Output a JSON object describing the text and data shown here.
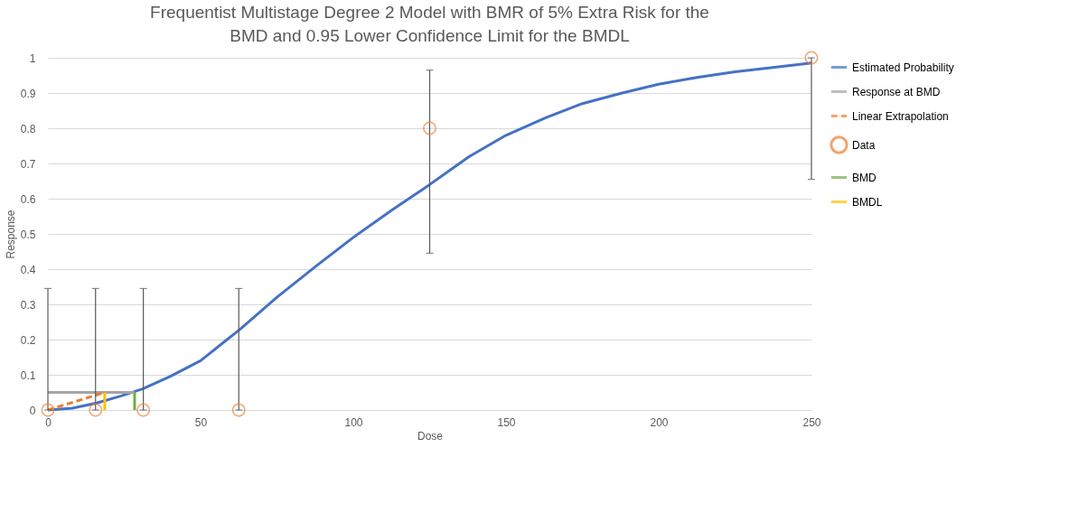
{
  "chart_data": {
    "type": "line",
    "title": "Frequentist Multistage Degree 2 Model with BMR of 5% Extra Risk for the BMD and 0.95 Lower Confidence Limit for the BMDL",
    "xlabel": "Dose",
    "ylabel": "Response",
    "xlim": [
      0,
      250
    ],
    "xticks": [
      0,
      50,
      100,
      150,
      200,
      250
    ],
    "ylim": [
      0,
      1
    ],
    "yticks": [
      0,
      0.1,
      0.2,
      0.3,
      0.4,
      0.5,
      0.6,
      0.7,
      0.8,
      0.9,
      1
    ],
    "grid": "y",
    "legend": "right",
    "series": [
      {
        "name": "Estimated Probability",
        "color": "#4472c4",
        "line_style": "solid",
        "x": [
          0,
          8,
          16,
          24,
          31,
          40,
          50,
          63,
          75,
          88,
          100,
          113,
          125,
          138,
          150,
          163,
          175,
          188,
          200,
          213,
          225,
          238,
          250
        ],
        "values": [
          0,
          0.005,
          0.02,
          0.04,
          0.06,
          0.095,
          0.14,
          0.23,
          0.32,
          0.41,
          0.49,
          0.57,
          0.64,
          0.72,
          0.78,
          0.83,
          0.87,
          0.9,
          0.925,
          0.945,
          0.96,
          0.973,
          0.985
        ]
      },
      {
        "name": "Response at BMD",
        "color": "#a5a5a5",
        "line_style": "solid",
        "x": [
          0,
          28.4
        ],
        "values": [
          0.05,
          0.05
        ]
      },
      {
        "name": "Linear Extrapolation",
        "color": "#ed7d31",
        "line_style": "dashed",
        "x": [
          0,
          18.6
        ],
        "values": [
          0,
          0.05
        ]
      },
      {
        "name": "Data",
        "type": "scatter",
        "color": "#ed7d31",
        "marker": "circle",
        "x": [
          0,
          15.6,
          31.25,
          62.5,
          125,
          250
        ],
        "values": [
          0,
          0,
          0,
          0,
          0.8,
          1
        ],
        "errors": [
          [
            0,
            0.345
          ],
          [
            0,
            0.345
          ],
          [
            0,
            0.345
          ],
          [
            0,
            0.345
          ],
          [
            0.445,
            0.965
          ],
          [
            0.655,
            1
          ]
        ]
      },
      {
        "name": "BMD",
        "color": "#70ad47",
        "line_style": "solid",
        "x": [
          28.4,
          28.4
        ],
        "values": [
          0,
          0.05
        ]
      },
      {
        "name": "BMDL",
        "color": "#ffc000",
        "line_style": "solid",
        "x": [
          18.6,
          18.6
        ],
        "values": [
          0,
          0.05
        ]
      }
    ]
  }
}
